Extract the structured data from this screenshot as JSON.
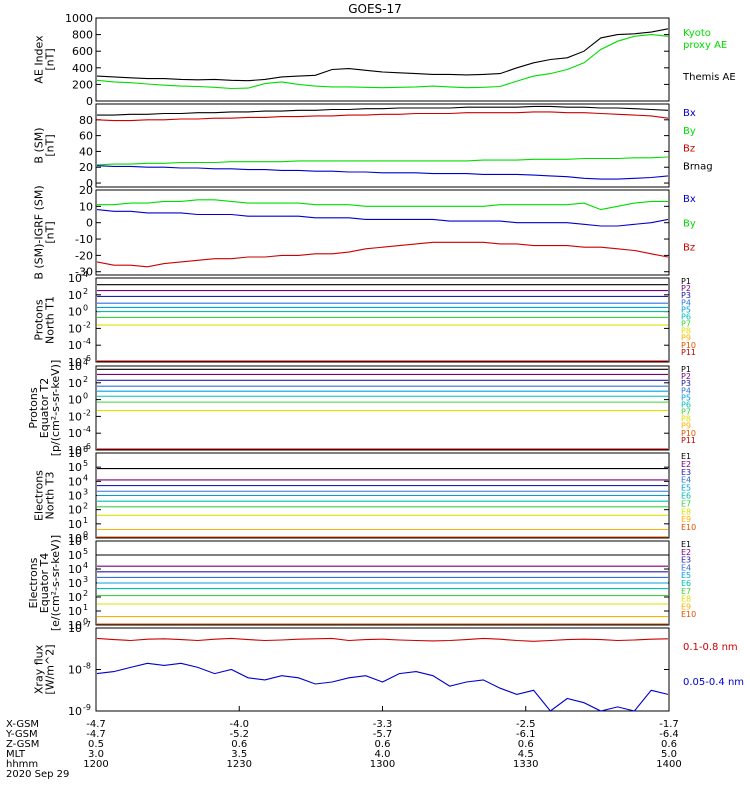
{
  "title": "GOES-17",
  "colors": {
    "black": "#000000",
    "green": "#00dd00",
    "blue": "#0000cc",
    "red": "#cc0000",
    "p_colors": [
      "#000000",
      "#7a007a",
      "#2020b0",
      "#3070e0",
      "#00a0e0",
      "#00c0b0",
      "#40d040",
      "#e0e000",
      "#ffb000",
      "#e05000",
      "#c00000"
    ],
    "e_colors": [
      "#000000",
      "#7a007a",
      "#2020b0",
      "#3070e0",
      "#00a0e0",
      "#00c0b0",
      "#40d040",
      "#e0e000",
      "#ffb000",
      "#e05000",
      "#c00000"
    ]
  },
  "chart_data": [
    {
      "id": "ae",
      "type": "line",
      "ylabel": [
        "AE Index",
        "[nT]"
      ],
      "ylim": [
        0,
        1000
      ],
      "ticks": [
        "0",
        "200",
        "400",
        "600",
        "800",
        "1000"
      ],
      "tick_values": [
        0,
        200,
        400,
        600,
        800,
        1000
      ],
      "series": [
        {
          "name": "Themis AE",
          "color": "black",
          "values": [
            300,
            290,
            280,
            270,
            270,
            260,
            255,
            260,
            250,
            245,
            260,
            290,
            300,
            310,
            380,
            390,
            370,
            350,
            340,
            330,
            320,
            320,
            315,
            320,
            330,
            400,
            460,
            500,
            520,
            600,
            760,
            800,
            810,
            830,
            870
          ]
        },
        {
          "name": "Kyoto proxy AE",
          "color": "green",
          "values": [
            250,
            230,
            220,
            205,
            190,
            180,
            175,
            165,
            150,
            155,
            210,
            230,
            200,
            180,
            170,
            170,
            165,
            160,
            165,
            170,
            180,
            170,
            160,
            165,
            175,
            240,
            300,
            330,
            380,
            460,
            620,
            720,
            780,
            800,
            780
          ]
        }
      ],
      "legend": [
        {
          "text": "Kyoto",
          "color": "green"
        },
        {
          "text": "proxy AE",
          "color": "green"
        },
        {
          "text": "Themis AE",
          "color": "black"
        }
      ]
    },
    {
      "id": "bsm",
      "type": "line",
      "ylabel": [
        "B (SM)",
        "[nT]"
      ],
      "ylim": [
        -5,
        100
      ],
      "ticks": [
        "0",
        "20",
        "40",
        "60",
        "80"
      ],
      "tick_values": [
        0,
        20,
        40,
        60,
        80
      ],
      "series": [
        {
          "name": "Brnag",
          "color": "black",
          "values": [
            86,
            86,
            87,
            87,
            88,
            88,
            89,
            89,
            90,
            90,
            91,
            91,
            92,
            92,
            93,
            93,
            94,
            94,
            95,
            95,
            95,
            95,
            96,
            96,
            96,
            96,
            97,
            97,
            96,
            96,
            95,
            95,
            94,
            93,
            92
          ]
        },
        {
          "name": "Bz",
          "color": "red",
          "values": [
            80,
            79,
            79,
            80,
            80,
            81,
            81,
            82,
            82,
            83,
            83,
            84,
            84,
            85,
            85,
            86,
            86,
            87,
            87,
            88,
            88,
            88,
            89,
            89,
            89,
            89,
            90,
            90,
            89,
            89,
            88,
            87,
            86,
            85,
            82
          ]
        },
        {
          "name": "By",
          "color": "green",
          "values": [
            23,
            24,
            24,
            25,
            25,
            26,
            26,
            26,
            27,
            27,
            27,
            27,
            28,
            28,
            28,
            28,
            28,
            28,
            28,
            28,
            28,
            28,
            28,
            29,
            29,
            29,
            30,
            30,
            30,
            31,
            31,
            31,
            32,
            32,
            33
          ]
        },
        {
          "name": "Bx",
          "color": "blue",
          "values": [
            22,
            21,
            21,
            20,
            20,
            19,
            19,
            18,
            18,
            17,
            17,
            16,
            16,
            15,
            15,
            14,
            14,
            13,
            13,
            13,
            12,
            12,
            12,
            11,
            11,
            11,
            10,
            9,
            8,
            6,
            5,
            5,
            6,
            7,
            9
          ]
        }
      ],
      "legend": [
        {
          "text": "Bx",
          "color": "blue"
        },
        {
          "text": "By",
          "color": "green"
        },
        {
          "text": "Bz",
          "color": "red"
        },
        {
          "text": "Brnag",
          "color": "black"
        }
      ]
    },
    {
      "id": "bigrf",
      "type": "line",
      "ylabel": [
        "B (SM)-IGRF (SM)",
        "[nT]"
      ],
      "ylim": [
        -32,
        20
      ],
      "ticks": [
        "-30",
        "-20",
        "-10",
        "0",
        "10",
        "20"
      ],
      "tick_values": [
        -30,
        -20,
        -10,
        0,
        10,
        20
      ],
      "series": [
        {
          "name": "By",
          "color": "green",
          "values": [
            11,
            11,
            12,
            12,
            13,
            13,
            14,
            14,
            13,
            12,
            12,
            12,
            12,
            11,
            11,
            11,
            10,
            10,
            10,
            10,
            10,
            10,
            10,
            10,
            11,
            11,
            11,
            11,
            11,
            12,
            8,
            10,
            12,
            13,
            13
          ]
        },
        {
          "name": "Bx",
          "color": "blue",
          "values": [
            8,
            7,
            7,
            6,
            6,
            6,
            5,
            5,
            5,
            4,
            4,
            4,
            4,
            3,
            3,
            3,
            2,
            2,
            2,
            2,
            2,
            1,
            1,
            1,
            1,
            0,
            0,
            0,
            0,
            -1,
            -2,
            -2,
            -1,
            0,
            2
          ]
        },
        {
          "name": "Bz",
          "color": "red",
          "values": [
            -24,
            -26,
            -26,
            -27,
            -25,
            -24,
            -23,
            -22,
            -22,
            -21,
            -21,
            -20,
            -20,
            -19,
            -19,
            -18,
            -16,
            -15,
            -14,
            -13,
            -12,
            -12,
            -12,
            -12,
            -13,
            -13,
            -14,
            -14,
            -14,
            -15,
            -15,
            -16,
            -17,
            -19,
            -21
          ]
        }
      ],
      "legend": [
        {
          "text": "Bx",
          "color": "blue"
        },
        {
          "text": "By",
          "color": "green"
        },
        {
          "text": "Bz",
          "color": "red"
        }
      ]
    },
    {
      "id": "protons_t1",
      "type": "line",
      "log": true,
      "ylabel": [
        "Protons",
        "North T1"
      ],
      "ylim": [
        -6,
        4
      ],
      "ticks": [
        "10",
        "10",
        "10",
        "10",
        "10",
        "10"
      ],
      "tick_exps": [
        "-6",
        "-4",
        "-2",
        "0",
        "2",
        "4"
      ],
      "tick_values": [
        -6,
        -4,
        -2,
        0,
        2,
        4
      ],
      "channels": [
        "P1",
        "P2",
        "P3",
        "P4",
        "P5",
        "P6",
        "P7",
        "P8",
        "P9",
        "P10",
        "P11"
      ],
      "levels": [
        3.2,
        2.5,
        1.8,
        1.0,
        0.5,
        0.0,
        -0.7,
        -1.6,
        -6.1,
        -6.1,
        -6.1
      ]
    },
    {
      "id": "protons_t2",
      "type": "line",
      "log": true,
      "ylabel": [
        "Protons",
        "Equator T2",
        "[p/(cm²-s-sr-keV)]"
      ],
      "ylim": [
        -6,
        4
      ],
      "ticks": [
        "10",
        "10",
        "10",
        "10",
        "10",
        "10"
      ],
      "tick_exps": [
        "-6",
        "-4",
        "-2",
        "0",
        "2",
        "4"
      ],
      "tick_values": [
        -6,
        -4,
        -2,
        0,
        2,
        4
      ],
      "channels": [
        "P1",
        "P2",
        "P3",
        "P4",
        "P5",
        "P6",
        "P7",
        "P8",
        "P9",
        "P10",
        "P11"
      ],
      "levels": [
        3.6,
        3.0,
        2.3,
        1.6,
        1.0,
        0.4,
        -0.3,
        -1.3,
        -6.1,
        -6.1,
        -6.1
      ]
    },
    {
      "id": "electrons_t3",
      "type": "line",
      "log": true,
      "ylabel": [
        "Electrons",
        "North T3"
      ],
      "ylim": [
        0,
        6
      ],
      "ticks": [
        "10",
        "10",
        "10",
        "10",
        "10",
        "10",
        "10"
      ],
      "tick_exps": [
        "0",
        "1",
        "2",
        "3",
        "4",
        "5",
        "6"
      ],
      "tick_values": [
        0,
        1,
        2,
        3,
        4,
        5,
        6
      ],
      "channels": [
        "E1",
        "E2",
        "E3",
        "E4",
        "E5",
        "E6",
        "E7",
        "E8",
        "E9",
        "E10"
      ],
      "levels": [
        4.9,
        4.1,
        3.7,
        3.3,
        3.0,
        2.6,
        2.2,
        1.6,
        0.6,
        0.05
      ]
    },
    {
      "id": "electrons_t4",
      "type": "line",
      "log": true,
      "ylabel": [
        "Electrons",
        "Equator T4",
        "[e/(cm²-s-sr-keV)]"
      ],
      "ylim": [
        0,
        6
      ],
      "ticks": [
        "10",
        "10",
        "10",
        "10",
        "10",
        "10",
        "10"
      ],
      "tick_exps": [
        "0",
        "1",
        "2",
        "3",
        "4",
        "5",
        "6"
      ],
      "tick_values": [
        0,
        1,
        2,
        3,
        4,
        5,
        6
      ],
      "channels": [
        "E1",
        "E2",
        "E3",
        "E4",
        "E5",
        "E6",
        "E7",
        "E8",
        "E9",
        "E10"
      ],
      "levels": [
        5.0,
        4.2,
        3.8,
        3.4,
        3.0,
        2.6,
        2.1,
        1.5,
        0.6,
        0.05
      ]
    },
    {
      "id": "xray",
      "type": "line",
      "log": true,
      "ylabel": [
        "Xray flux",
        "[W/m^2]"
      ],
      "ylim": [
        -9,
        -7
      ],
      "ticks": [
        "10",
        "10",
        "10"
      ],
      "tick_exps": [
        "-9",
        "-8",
        "-7"
      ],
      "tick_values": [
        -9,
        -8,
        -7
      ],
      "series": [
        {
          "name": "0.1-0.8 nm",
          "color": "red",
          "values": [
            -7.25,
            -7.28,
            -7.3,
            -7.27,
            -7.26,
            -7.28,
            -7.3,
            -7.27,
            -7.25,
            -7.28,
            -7.3,
            -7.29,
            -7.27,
            -7.26,
            -7.25,
            -7.3,
            -7.28,
            -7.27,
            -7.29,
            -7.3,
            -7.31,
            -7.3,
            -7.28,
            -7.25,
            -7.27,
            -7.3,
            -7.32,
            -7.3,
            -7.28,
            -7.27,
            -7.28,
            -7.3,
            -7.29,
            -7.27,
            -7.26
          ]
        },
        {
          "name": "0.05-0.4 nm",
          "color": "blue",
          "values": [
            -8.1,
            -8.05,
            -7.95,
            -7.85,
            -7.9,
            -7.85,
            -7.95,
            -8.1,
            -8.0,
            -8.2,
            -8.25,
            -8.15,
            -8.2,
            -8.35,
            -8.3,
            -8.2,
            -8.15,
            -8.3,
            -8.1,
            -8.05,
            -8.15,
            -8.4,
            -8.3,
            -8.25,
            -8.45,
            -8.6,
            -8.5,
            -9.0,
            -8.7,
            -8.8,
            -9.0,
            -8.9,
            -9.1,
            -8.5,
            -8.6
          ]
        }
      ],
      "legend": [
        {
          "text": "0.1-0.8 nm",
          "color": "red"
        },
        {
          "text": "0.05-0.4 nm",
          "color": "blue"
        }
      ]
    }
  ],
  "x_axis": {
    "row_labels": [
      "X-GSM",
      "Y-GSM",
      "Z-GSM",
      "MLT",
      "hhmm",
      "2020 Sep 29"
    ],
    "ticks": [
      {
        "values": [
          "-4.7",
          "-4.7",
          "0.5",
          "3.0",
          "1200"
        ]
      },
      {
        "values": [
          "-4.0",
          "-5.2",
          "0.6",
          "3.5",
          "1230"
        ]
      },
      {
        "values": [
          "-3.3",
          "-5.7",
          "0.6",
          "4.0",
          "1300"
        ]
      },
      {
        "values": [
          "-2.5",
          "-6.1",
          "0.6",
          "4.5",
          "1330"
        ]
      },
      {
        "values": [
          "-1.7",
          "-6.4",
          "0.6",
          "5.0",
          "1400"
        ]
      }
    ]
  }
}
